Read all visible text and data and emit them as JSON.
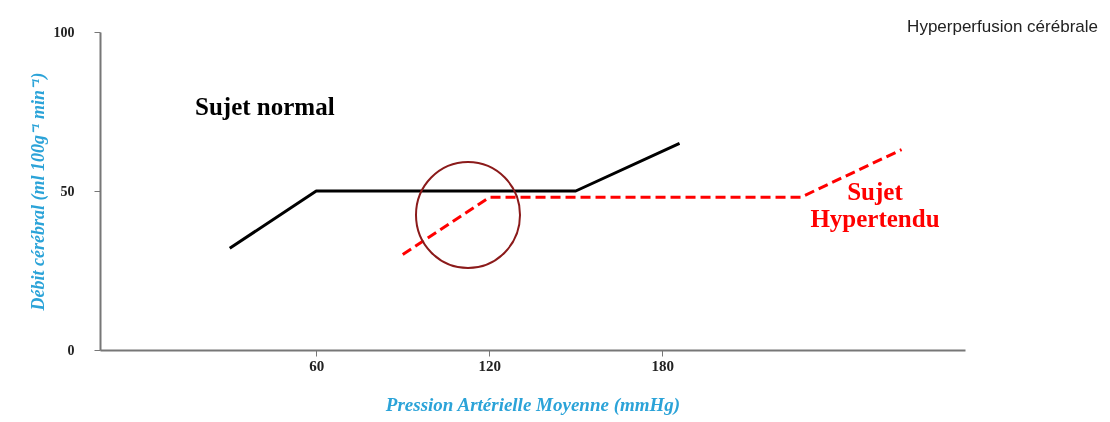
{
  "chart_data": {
    "type": "line",
    "xlabel": "Pression Artérielle Moyenne (mmHg)",
    "ylabel": "Débit cérébral (ml 100g⁻¹ min⁻¹)",
    "annotations": [
      "Hyperperfusion cérébrale"
    ],
    "series": [
      {
        "name": "Sujet normal",
        "color": "#000000",
        "line_style": "solid",
        "x": [
          30,
          60,
          150,
          186
        ],
        "values": [
          32,
          50,
          50,
          65
        ]
      },
      {
        "name": "Sujet Hypertendu",
        "color": "#ff0000",
        "line_style": "dashed",
        "x": [
          90,
          120,
          228,
          263
        ],
        "values": [
          30,
          48,
          48,
          63
        ]
      }
    ],
    "xlim": [
      -15,
      285
    ],
    "xticks": [
      60,
      120,
      180
    ],
    "ylim": [
      0,
      100
    ],
    "yticks": [
      0,
      50,
      100
    ],
    "grid": false,
    "legend": false,
    "marker": "none"
  }
}
